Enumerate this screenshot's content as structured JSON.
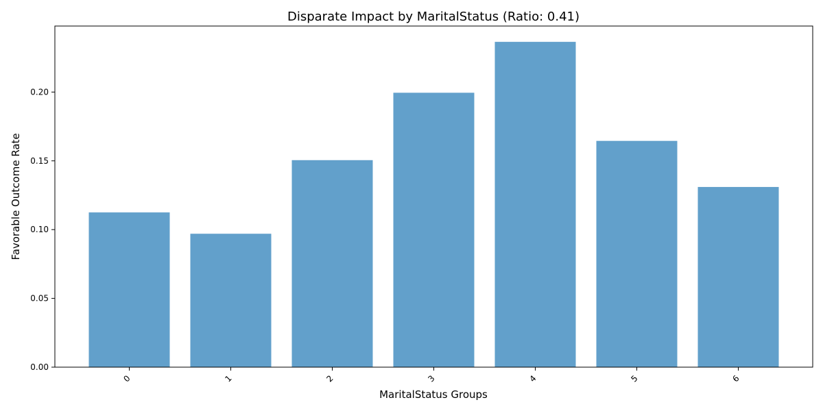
{
  "chart_data": {
    "type": "bar",
    "title": "Disparate Impact by MaritalStatus (Ratio: 0.41)",
    "xlabel": "MaritalStatus Groups",
    "ylabel": "Favorable Outcome Rate",
    "categories": [
      "0",
      "1",
      "2",
      "3",
      "4",
      "5",
      "6"
    ],
    "values": [
      0.1125,
      0.097,
      0.1505,
      0.1995,
      0.2365,
      0.1645,
      0.131
    ],
    "ylim": [
      0,
      0.248
    ],
    "yticks": [
      0.0,
      0.05,
      0.1,
      0.15,
      0.2
    ],
    "ytick_labels": [
      "0.00",
      "0.05",
      "0.10",
      "0.15",
      "0.20"
    ],
    "bar_color": "#62a0cb",
    "grid": false,
    "legend": false
  }
}
